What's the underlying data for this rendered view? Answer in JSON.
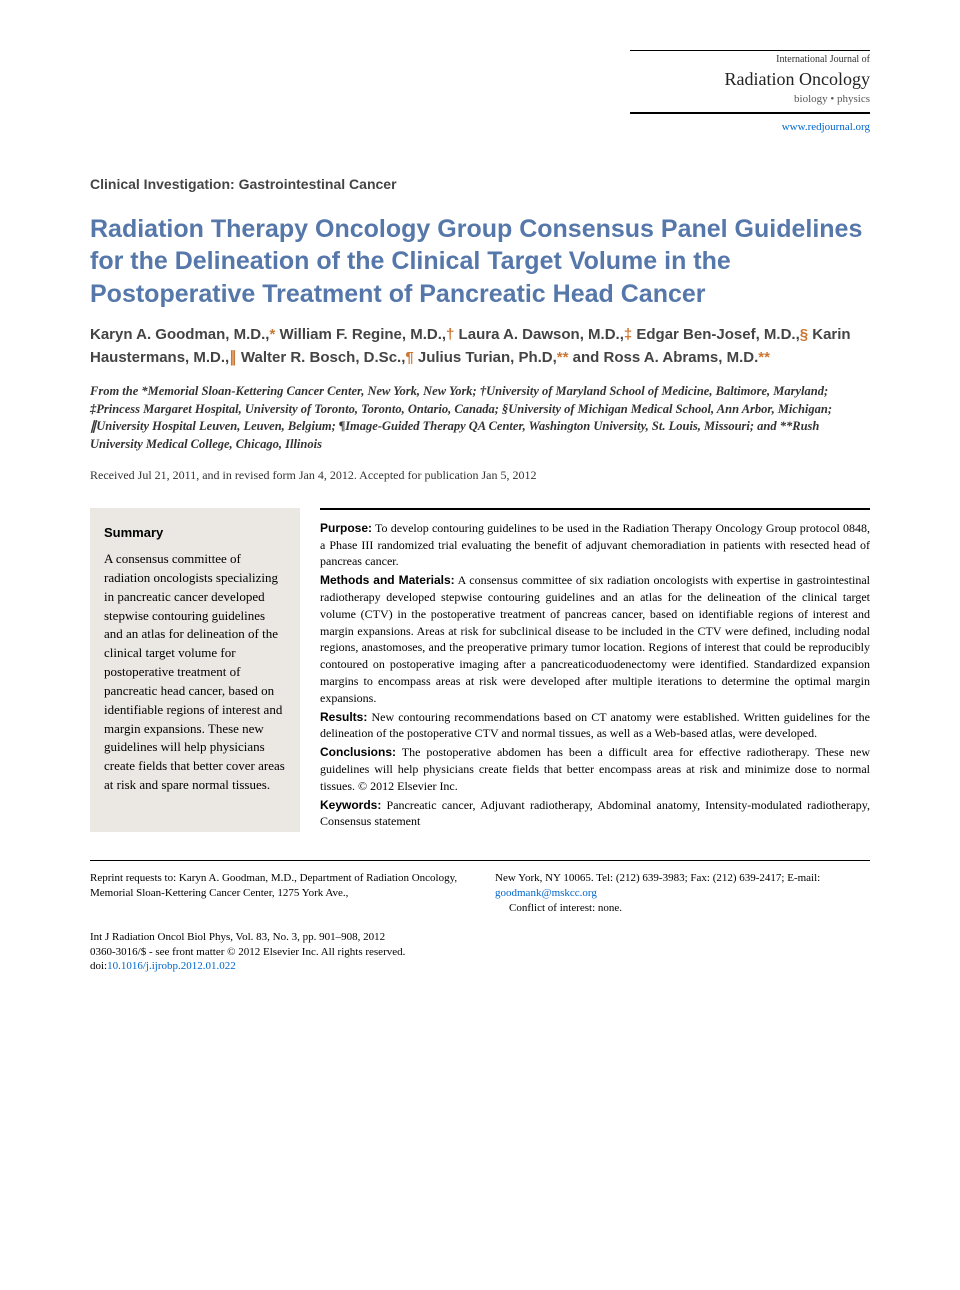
{
  "journal": {
    "name_small": "International Journal of",
    "name_large": "Radiation Oncology",
    "subtitle": "biology • physics",
    "url": "www.redjournal.org"
  },
  "section_label": "Clinical Investigation: Gastrointestinal Cancer",
  "title": "Radiation Therapy Oncology Group Consensus Panel Guidelines for the Delineation of the Clinical Target Volume in the Postoperative Treatment of Pancreatic Head Cancer",
  "authors_html_parts": [
    {
      "name": "Karyn A. Goodman, M.D.,",
      "marker": "*"
    },
    {
      "name": " William F. Regine, M.D.,",
      "marker": "†"
    },
    {
      "name": " Laura A. Dawson, M.D.,",
      "marker": "‡"
    },
    {
      "name": " Edgar Ben-Josef, M.D.,",
      "marker": "§"
    },
    {
      "name": " Karin Haustermans, M.D.,",
      "marker": "∥"
    },
    {
      "name": " Walter R. Bosch, D.Sc.,",
      "marker": "¶"
    },
    {
      "name": " Julius Turian, Ph.D,",
      "marker": "**"
    },
    {
      "name": " and Ross A. Abrams, M.D.",
      "marker": "**"
    }
  ],
  "affiliations": "From the *Memorial Sloan-Kettering Cancer Center, New York, New York; †University of Maryland School of Medicine, Baltimore, Maryland; ‡Princess Margaret Hospital, University of Toronto, Toronto, Ontario, Canada; §University of Michigan Medical School, Ann Arbor, Michigan; ∥University Hospital Leuven, Leuven, Belgium; ¶Image-Guided Therapy QA Center, Washington University, St. Louis, Missouri; and **Rush University Medical College, Chicago, Illinois",
  "dates": "Received Jul 21, 2011, and in revised form Jan 4, 2012. Accepted for publication Jan 5, 2012",
  "summary": {
    "heading": "Summary",
    "text": "A consensus committee of radiation oncologists specializing in pancreatic cancer developed stepwise contouring guidelines and an atlas for delineation of the clinical target volume for postoperative treatment of pancreatic head cancer, based on identifiable regions of interest and margin expansions. These new guidelines will help physicians create fields that better cover areas at risk and spare normal tissues."
  },
  "abstract": {
    "purpose": {
      "label": "Purpose:",
      "text": " To develop contouring guidelines to be used in the Radiation Therapy Oncology Group protocol 0848, a Phase III randomized trial evaluating the benefit of adjuvant chemoradiation in patients with resected head of pancreas cancer."
    },
    "methods": {
      "label": "Methods and Materials:",
      "text": " A consensus committee of six radiation oncologists with expertise in gastrointestinal radiotherapy developed stepwise contouring guidelines and an atlas for the delineation of the clinical target volume (CTV) in the postoperative treatment of pancreas cancer, based on identifiable regions of interest and margin expansions. Areas at risk for subclinical disease to be included in the CTV were defined, including nodal regions, anastomoses, and the preoperative primary tumor location. Regions of interest that could be reproducibly contoured on postoperative imaging after a pancreaticoduodenectomy were identified. Standardized expansion margins to encompass areas at risk were developed after multiple iterations to determine the optimal margin expansions."
    },
    "results": {
      "label": "Results:",
      "text": " New contouring recommendations based on CT anatomy were established. Written guidelines for the delineation of the postoperative CTV and normal tissues, as well as a Web-based atlas, were developed."
    },
    "conclusions": {
      "label": "Conclusions:",
      "text": " The postoperative abdomen has been a difficult area for effective radiotherapy. These new guidelines will help physicians create fields that better encompass areas at risk and minimize dose to normal tissues. © 2012 Elsevier Inc."
    },
    "keywords": {
      "label": "Keywords:",
      "text": " Pancreatic cancer, Adjuvant radiotherapy, Abdominal anatomy, Intensity-modulated radiotherapy, Consensus statement"
    }
  },
  "footer": {
    "reprint_left": "Reprint requests to: Karyn A. Goodman, M.D., Department of Radiation Oncology, Memorial Sloan-Kettering Cancer Center, 1275 York Ave.,",
    "reprint_right_pre": "New York, NY 10065. Tel: (212) 639-3983; Fax: (212) 639-2417; E-mail: ",
    "reprint_email": "goodmank@mskcc.org",
    "conflict": "Conflict of interest: none."
  },
  "citation": {
    "line1": "Int J Radiation Oncol Biol Phys, Vol. 83, No. 3, pp. 901–908, 2012",
    "line2": "0360-3016/$ - see front matter © 2012 Elsevier Inc. All rights reserved.",
    "doi_label": "doi:",
    "doi": "10.1016/j.ijrobp.2012.01.022"
  },
  "colors": {
    "title_color": "#5577aa",
    "marker_color": "#cc7733",
    "link_color": "#0066cc",
    "summary_bg": "#ebe8e4"
  }
}
